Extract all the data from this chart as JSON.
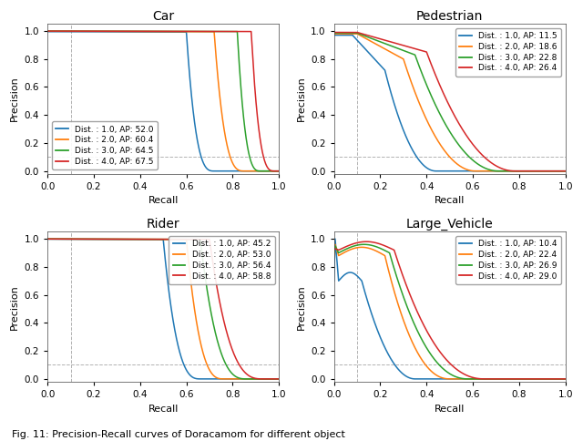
{
  "subplots": [
    {
      "title": "Car",
      "legend_loc": "lower left",
      "curves": [
        {
          "label": "Dist. : 1.0, AP: 52.0",
          "color": "#1f77b4",
          "shape": "car",
          "flat_end": 0.6,
          "drop_end": 0.72,
          "start_p": 0.995,
          "drop_exp": 3.0
        },
        {
          "label": "Dist. : 2.0, AP: 60.4",
          "color": "#ff7f0e",
          "shape": "car",
          "flat_end": 0.72,
          "drop_end": 0.85,
          "start_p": 0.998,
          "drop_exp": 3.0
        },
        {
          "label": "Dist. : 3.0, AP: 64.5",
          "color": "#2ca02c",
          "shape": "car",
          "flat_end": 0.82,
          "drop_end": 0.92,
          "start_p": 0.999,
          "drop_exp": 3.0
        },
        {
          "label": "Dist. : 4.0, AP: 67.5",
          "color": "#d62728",
          "shape": "car",
          "flat_end": 0.88,
          "drop_end": 0.98,
          "start_p": 0.999,
          "drop_exp": 3.0
        }
      ]
    },
    {
      "title": "Pedestrian",
      "legend_loc": "upper right",
      "curves": [
        {
          "label": "Dist. : 1.0, AP: 11.5",
          "color": "#1f77b4",
          "shape": "ped",
          "start_drop": 0.08,
          "mid_drop": 0.22,
          "drop_end": 0.44,
          "start_p": 0.97,
          "mid_p": 0.72,
          "drop_exp": 2.0
        },
        {
          "label": "Dist. : 2.0, AP: 18.6",
          "color": "#ff7f0e",
          "shape": "ped",
          "start_drop": 0.1,
          "mid_drop": 0.3,
          "drop_end": 0.61,
          "start_p": 0.98,
          "mid_p": 0.8,
          "drop_exp": 2.0
        },
        {
          "label": "Dist. : 3.0, AP: 22.8",
          "color": "#2ca02c",
          "shape": "ped",
          "start_drop": 0.1,
          "mid_drop": 0.35,
          "drop_end": 0.71,
          "start_p": 0.985,
          "mid_p": 0.83,
          "drop_exp": 2.0
        },
        {
          "label": "Dist. : 4.0, AP: 26.4",
          "color": "#d62728",
          "shape": "ped",
          "start_drop": 0.1,
          "mid_drop": 0.4,
          "drop_end": 0.78,
          "start_p": 0.99,
          "mid_p": 0.85,
          "drop_exp": 2.0
        }
      ]
    },
    {
      "title": "Rider",
      "legend_loc": "upper right",
      "curves": [
        {
          "label": "Dist. : 1.0, AP: 45.2",
          "color": "#1f77b4",
          "shape": "car",
          "flat_end": 0.5,
          "drop_end": 0.66,
          "start_p": 0.998,
          "drop_exp": 2.8
        },
        {
          "label": "Dist. : 2.0, AP: 53.0",
          "color": "#ff7f0e",
          "shape": "car",
          "flat_end": 0.6,
          "drop_end": 0.76,
          "start_p": 0.999,
          "drop_exp": 2.8
        },
        {
          "label": "Dist. : 3.0, AP: 56.4",
          "color": "#2ca02c",
          "shape": "car",
          "flat_end": 0.66,
          "drop_end": 0.86,
          "start_p": 0.999,
          "drop_exp": 2.8
        },
        {
          "label": "Dist. : 4.0, AP: 58.8",
          "color": "#d62728",
          "shape": "car",
          "flat_end": 0.7,
          "drop_end": 0.93,
          "start_p": 0.999,
          "drop_exp": 2.8
        }
      ]
    },
    {
      "title": "Large_Vehicle",
      "legend_loc": "upper right",
      "curves": [
        {
          "label": "Dist. : 1.0, AP: 10.4",
          "color": "#1f77b4",
          "shape": "lv",
          "spike_x": 0.005,
          "spike_p": 1.0,
          "flat_start": 0.02,
          "flat_p": 0.7,
          "flat_end": 0.12,
          "drop_end": 0.35,
          "drop_exp": 2.0
        },
        {
          "label": "Dist. : 2.0, AP: 22.4",
          "color": "#ff7f0e",
          "shape": "lv",
          "spike_x": 0.005,
          "spike_p": 0.96,
          "flat_start": 0.02,
          "flat_p": 0.88,
          "flat_end": 0.22,
          "drop_end": 0.5,
          "drop_exp": 2.2
        },
        {
          "label": "Dist. : 3.0, AP: 26.9",
          "color": "#2ca02c",
          "shape": "lv",
          "spike_x": 0.005,
          "spike_p": 0.95,
          "flat_start": 0.02,
          "flat_p": 0.9,
          "flat_end": 0.24,
          "drop_end": 0.58,
          "drop_exp": 2.2
        },
        {
          "label": "Dist. : 4.0, AP: 29.0",
          "color": "#d62728",
          "shape": "lv",
          "spike_x": 0.005,
          "spike_p": 0.93,
          "flat_start": 0.02,
          "flat_p": 0.92,
          "flat_end": 0.26,
          "drop_end": 0.65,
          "drop_exp": 2.2
        }
      ]
    }
  ],
  "xlabel": "Recall",
  "ylabel": "Precision",
  "xlim": [
    0.0,
    1.0
  ],
  "ylim": [
    -0.02,
    1.05
  ],
  "hline_y": 0.1,
  "vline_x": 0.1,
  "caption": "Fig. 11: Precision-Recall curves of Doracamom for different object",
  "background_color": "#ffffff",
  "grid_color": "#aaaaaa",
  "fontsize_title": 10,
  "fontsize_label": 8,
  "fontsize_legend": 6.5,
  "fontsize_tick": 7.5,
  "linewidth": 1.1
}
